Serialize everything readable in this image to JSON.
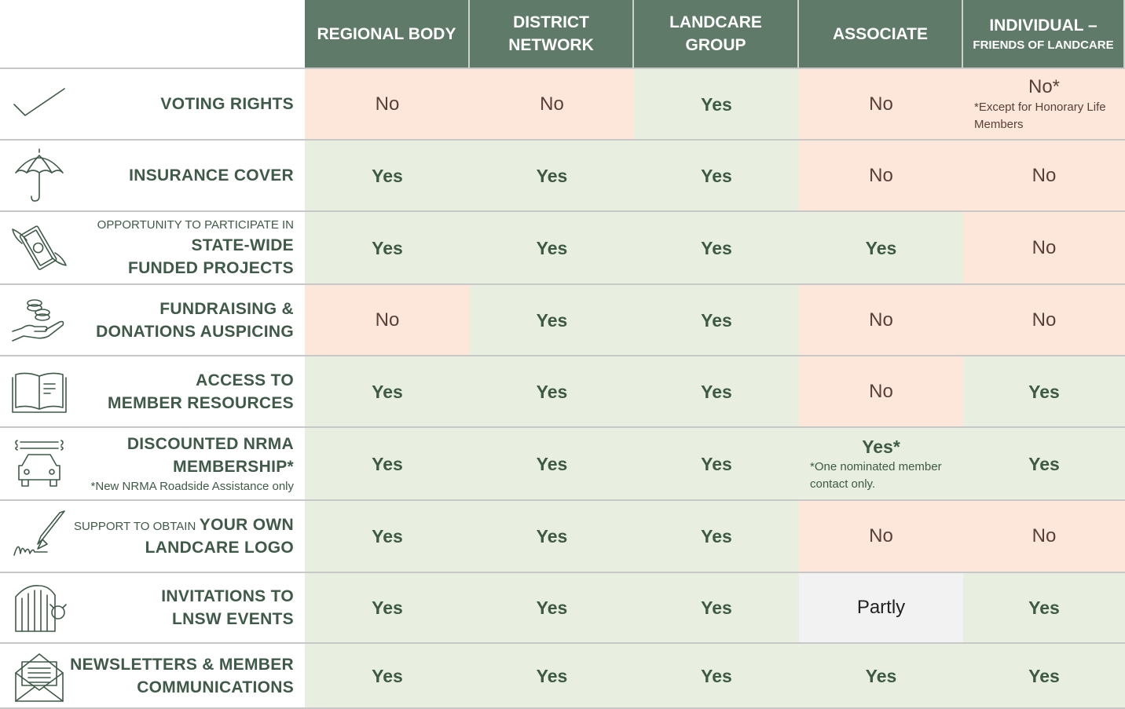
{
  "columns": [
    {
      "line1": "REGIONAL BODY",
      "line2": ""
    },
    {
      "line1": "DISTRICT",
      "line2": "NETWORK"
    },
    {
      "line1": "LANDCARE",
      "line2": "GROUP"
    },
    {
      "line1": "ASSOCIATE",
      "line2": ""
    },
    {
      "line1": "INDIVIDUAL –",
      "line2": "FRIENDS OF LANDCARE"
    }
  ],
  "rows": [
    {
      "icon": "checkmark-icon",
      "prefix": "",
      "line1": "VOTING RIGHTS",
      "line2": "",
      "note": "",
      "cells": [
        {
          "value": "No",
          "status": "no",
          "footnote": ""
        },
        {
          "value": "No",
          "status": "no",
          "footnote": ""
        },
        {
          "value": "Yes",
          "status": "yes",
          "footnote": ""
        },
        {
          "value": "No",
          "status": "no",
          "footnote": ""
        },
        {
          "value": "No*",
          "status": "no",
          "footnote": "*Except for Honorary Life Members"
        }
      ]
    },
    {
      "icon": "umbrella-icon",
      "prefix": "",
      "line1": "INSURANCE COVER",
      "line2": "",
      "note": "",
      "cells": [
        {
          "value": "Yes",
          "status": "yes",
          "footnote": ""
        },
        {
          "value": "Yes",
          "status": "yes",
          "footnote": ""
        },
        {
          "value": "Yes",
          "status": "yes",
          "footnote": ""
        },
        {
          "value": "No",
          "status": "no",
          "footnote": ""
        },
        {
          "value": "No",
          "status": "no",
          "footnote": ""
        }
      ]
    },
    {
      "icon": "flying-money-icon",
      "prefix": "OPPORTUNITY TO PARTICIPATE IN",
      "line1": "STATE-WIDE",
      "line2": "FUNDED PROJECTS",
      "note": "",
      "cells": [
        {
          "value": "Yes",
          "status": "yes",
          "footnote": ""
        },
        {
          "value": "Yes",
          "status": "yes",
          "footnote": ""
        },
        {
          "value": "Yes",
          "status": "yes",
          "footnote": ""
        },
        {
          "value": "Yes",
          "status": "yes",
          "footnote": ""
        },
        {
          "value": "No",
          "status": "no",
          "footnote": ""
        }
      ]
    },
    {
      "icon": "coins-hand-icon",
      "prefix": "",
      "line1": "FUNDRAISING &",
      "line2": "DONATIONS AUSPICING",
      "note": "",
      "cells": [
        {
          "value": "No",
          "status": "no",
          "footnote": ""
        },
        {
          "value": "Yes",
          "status": "yes",
          "footnote": ""
        },
        {
          "value": "Yes",
          "status": "yes",
          "footnote": ""
        },
        {
          "value": "No",
          "status": "no",
          "footnote": ""
        },
        {
          "value": "No",
          "status": "no",
          "footnote": ""
        }
      ]
    },
    {
      "icon": "open-book-icon",
      "prefix": "",
      "line1": "ACCESS TO",
      "line2": "MEMBER RESOURCES",
      "note": "",
      "cells": [
        {
          "value": "Yes",
          "status": "yes",
          "footnote": ""
        },
        {
          "value": "Yes",
          "status": "yes",
          "footnote": ""
        },
        {
          "value": "Yes",
          "status": "yes",
          "footnote": ""
        },
        {
          "value": "No",
          "status": "no",
          "footnote": ""
        },
        {
          "value": "Yes",
          "status": "yes",
          "footnote": ""
        }
      ]
    },
    {
      "icon": "car-wrench-icon",
      "prefix": "",
      "line1": "DISCOUNTED NRMA",
      "line2": "MEMBERSHIP*",
      "note": "*New NRMA Roadside Assistance only",
      "cells": [
        {
          "value": "Yes",
          "status": "yes",
          "footnote": ""
        },
        {
          "value": "Yes",
          "status": "yes",
          "footnote": ""
        },
        {
          "value": "Yes",
          "status": "yes",
          "footnote": ""
        },
        {
          "value": "Yes*",
          "status": "yes",
          "footnote": "*One nominated member contact only."
        },
        {
          "value": "Yes",
          "status": "yes",
          "footnote": ""
        }
      ]
    },
    {
      "icon": "pen-signature-icon",
      "prefix": "SUPPORT TO OBTAIN",
      "line1": "YOUR OWN",
      "line2": "LANDCARE LOGO",
      "note": "",
      "cells": [
        {
          "value": "Yes",
          "status": "yes",
          "footnote": ""
        },
        {
          "value": "Yes",
          "status": "yes",
          "footnote": ""
        },
        {
          "value": "Yes",
          "status": "yes",
          "footnote": ""
        },
        {
          "value": "No",
          "status": "no",
          "footnote": ""
        },
        {
          "value": "No",
          "status": "no",
          "footnote": ""
        }
      ]
    },
    {
      "icon": "event-ticket-icon",
      "prefix": "",
      "line1": "INVITATIONS TO",
      "line2": "LNSW EVENTS",
      "note": "",
      "cells": [
        {
          "value": "Yes",
          "status": "yes",
          "footnote": ""
        },
        {
          "value": "Yes",
          "status": "yes",
          "footnote": ""
        },
        {
          "value": "Yes",
          "status": "yes",
          "footnote": ""
        },
        {
          "value": "Partly",
          "status": "partly",
          "footnote": ""
        },
        {
          "value": "Yes",
          "status": "yes",
          "footnote": ""
        }
      ]
    },
    {
      "icon": "envelope-letter-icon",
      "prefix": "",
      "line1": "NEWSLETTERS & MEMBER",
      "line2": "COMMUNICATIONS",
      "note": "",
      "cells": [
        {
          "value": "Yes",
          "status": "yes",
          "footnote": ""
        },
        {
          "value": "Yes",
          "status": "yes",
          "footnote": ""
        },
        {
          "value": "Yes",
          "status": "yes",
          "footnote": ""
        },
        {
          "value": "Yes",
          "status": "yes",
          "footnote": ""
        },
        {
          "value": "Yes",
          "status": "yes",
          "footnote": ""
        }
      ]
    }
  ],
  "colors": {
    "header": "#5f7a68",
    "yes_bg": "#e9efe0",
    "no_bg": "#fce7da",
    "partly_bg": "#f2f2f2",
    "label_text": "#3f5a48"
  }
}
